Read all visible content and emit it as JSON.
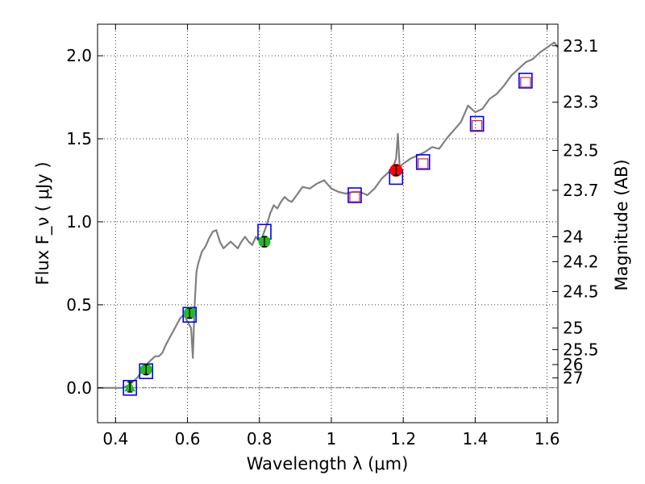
{
  "chart_data": {
    "type": "scatter",
    "title": "",
    "xlabel": "Wavelength  λ (μm)",
    "ylabel": "Flux  F_ν  ( μJy )",
    "ylabel_right": "Magnitude (AB)",
    "xlim": [
      0.35,
      1.63
    ],
    "ylim": [
      -0.21,
      2.19
    ],
    "grid": true,
    "xticks": [
      0.4,
      0.6,
      0.8,
      1.0,
      1.2,
      1.4,
      1.6
    ],
    "xtick_labels": [
      "0.4",
      "0.6",
      "0.8",
      "1",
      "1.2",
      "1.4",
      "1.6"
    ],
    "yticks": [
      0.0,
      0.5,
      1.0,
      1.5,
      2.0
    ],
    "ytick_labels": [
      "0.0",
      "0.5",
      "1.0",
      "1.5",
      "2.0"
    ],
    "right_ticks": [
      {
        "label": "23.1",
        "flux": 2.06
      },
      {
        "label": "23.3",
        "flux": 1.72
      },
      {
        "label": "23.5",
        "flux": 1.43
      },
      {
        "label": "23.7",
        "flux": 1.19
      },
      {
        "label": "24",
        "flux": 0.91
      },
      {
        "label": "24.2",
        "flux": 0.76
      },
      {
        "label": "24.5",
        "flux": 0.58
      },
      {
        "label": "25",
        "flux": 0.36
      },
      {
        "label": "25.5",
        "flux": 0.23
      },
      {
        "label": "26",
        "flux": 0.14
      },
      {
        "label": "27",
        "flux": 0.06
      }
    ],
    "colors": {
      "model": "#808080",
      "model_box": "#0000ff",
      "obs_box": "#d62728",
      "green": "#22bb22",
      "red": "#ff0000",
      "error": "#000000",
      "zero_line": "#404040"
    },
    "series": [
      {
        "name": "model_spectrum",
        "kind": "line",
        "x": [
          0.35,
          0.42,
          0.43,
          0.44,
          0.45,
          0.46,
          0.47,
          0.48,
          0.49,
          0.5,
          0.51,
          0.52,
          0.53,
          0.54,
          0.55,
          0.56,
          0.57,
          0.58,
          0.59,
          0.6,
          0.61,
          0.615,
          0.62,
          0.625,
          0.63,
          0.64,
          0.65,
          0.66,
          0.67,
          0.68,
          0.69,
          0.7,
          0.71,
          0.72,
          0.73,
          0.74,
          0.75,
          0.76,
          0.77,
          0.78,
          0.79,
          0.8,
          0.81,
          0.82,
          0.83,
          0.84,
          0.85,
          0.86,
          0.87,
          0.88,
          0.89,
          0.9,
          0.92,
          0.94,
          0.96,
          0.98,
          1.0,
          1.02,
          1.04,
          1.06,
          1.08,
          1.1,
          1.12,
          1.14,
          1.16,
          1.17,
          1.18,
          1.185,
          1.19,
          1.2,
          1.22,
          1.24,
          1.26,
          1.28,
          1.3,
          1.32,
          1.34,
          1.36,
          1.38,
          1.4,
          1.42,
          1.44,
          1.46,
          1.48,
          1.5,
          1.52,
          1.54,
          1.56,
          1.58,
          1.6,
          1.62,
          1.63
        ],
        "y": [
          0.0,
          0.0,
          0.01,
          0.02,
          0.04,
          0.06,
          0.09,
          0.12,
          0.15,
          0.17,
          0.19,
          0.19,
          0.21,
          0.26,
          0.3,
          0.34,
          0.38,
          0.42,
          0.44,
          0.4,
          0.36,
          0.18,
          0.5,
          0.7,
          0.75,
          0.82,
          0.85,
          0.9,
          0.94,
          0.95,
          0.88,
          0.84,
          0.86,
          0.88,
          0.86,
          0.84,
          0.88,
          0.91,
          0.88,
          0.86,
          0.91,
          0.88,
          0.92,
          0.98,
          1.05,
          1.1,
          1.08,
          1.12,
          1.15,
          1.13,
          1.12,
          1.15,
          1.21,
          1.2,
          1.23,
          1.25,
          1.2,
          1.18,
          1.17,
          1.18,
          1.18,
          1.16,
          1.2,
          1.26,
          1.3,
          1.32,
          1.38,
          1.53,
          1.33,
          1.35,
          1.38,
          1.4,
          1.42,
          1.45,
          1.44,
          1.5,
          1.55,
          1.6,
          1.7,
          1.66,
          1.68,
          1.74,
          1.77,
          1.82,
          1.88,
          1.92,
          1.96,
          1.98,
          2.02,
          2.05,
          2.08,
          2.05
        ]
      },
      {
        "name": "model_photometry",
        "kind": "open_square_blue",
        "x": [
          0.44,
          0.485,
          0.606,
          0.814,
          1.065,
          1.18,
          1.255,
          1.405,
          1.54
        ],
        "y": [
          0.0,
          0.1,
          0.44,
          0.94,
          1.16,
          1.27,
          1.36,
          1.59,
          1.85
        ]
      },
      {
        "name": "observed_red_squares",
        "kind": "open_square_red",
        "x": [
          1.065,
          1.255,
          1.405,
          1.54
        ],
        "y": [
          1.15,
          1.35,
          1.58,
          1.84
        ]
      },
      {
        "name": "observed_green",
        "kind": "filled_circle_green",
        "x": [
          0.485,
          0.606,
          0.814
        ],
        "y": [
          0.11,
          0.45,
          0.88
        ],
        "yerr": [
          0.03,
          0.03,
          0.03
        ]
      },
      {
        "name": "observed_green_limit",
        "kind": "triangle_green",
        "x": [
          0.44
        ],
        "y": [
          0.005
        ],
        "yerr": [
          0.03
        ]
      },
      {
        "name": "observed_red",
        "kind": "filled_circle_red",
        "x": [
          1.18
        ],
        "y": [
          1.31
        ],
        "yerr": [
          0.03
        ]
      }
    ]
  }
}
